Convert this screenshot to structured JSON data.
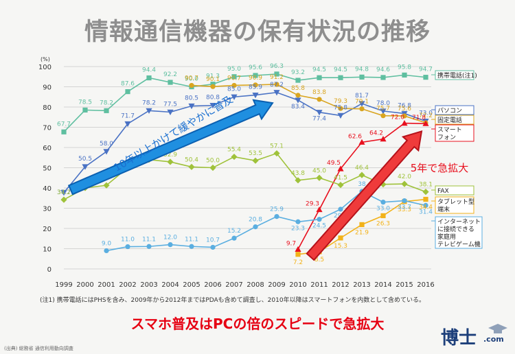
{
  "title": "情報通信機器の保有状況の推移",
  "note": "(注1) 携帯電話にはPHSを含み、2009年から2012年まではPDAも含めて調査し、2010年以降はスマートフォンを内数として含めている。",
  "headline": "スマホ普及はPCの倍のスピードで急拡大",
  "source": "(出典) 総務省 通信利用動向調査",
  "logo": {
    "text": "博士",
    "suffix": ".com"
  },
  "chart_data": {
    "type": "line",
    "unit_label": "(%)",
    "x": [
      1999,
      2000,
      2001,
      2002,
      2003,
      2004,
      2005,
      2006,
      2007,
      2008,
      2009,
      2010,
      2011,
      2012,
      2013,
      2014,
      2015,
      2016
    ],
    "ylim": [
      0,
      100
    ],
    "yticks": [
      0,
      10,
      20,
      30,
      40,
      50,
      60,
      70,
      80,
      90,
      100
    ],
    "grid": true,
    "series": [
      {
        "name": "携帯電話(注1)",
        "color": "#5fbfa0",
        "marker": "square",
        "values": [
          67.7,
          78.5,
          78.2,
          87.6,
          94.4,
          92.2,
          90.0,
          91.3,
          95.0,
          95.6,
          96.3,
          93.2,
          94.5,
          94.5,
          94.8,
          94.6,
          95.8,
          94.7
        ],
        "labels": [
          "67.7",
          "78.5",
          "78.2",
          "87.6",
          "94.4",
          "92.2",
          "90.0",
          "91.3",
          "95.0",
          "95.6",
          "96.3",
          "93.2",
          "94.5",
          "94.5",
          "94.8",
          "94.6",
          "95.8",
          "94.7"
        ]
      },
      {
        "name": "パソコン",
        "color": "#4a72c4",
        "marker": "triangle-down",
        "values": [
          37.7,
          50.5,
          58.0,
          71.7,
          78.2,
          77.5,
          80.5,
          80.8,
          85.0,
          85.9,
          87.2,
          83.4,
          77.4,
          75.8,
          81.7,
          78.0,
          76.8,
          73.0
        ],
        "labels": [
          "37.7",
          "50.5",
          "58.0",
          "71.7",
          "78.2",
          "77.5",
          "80.5",
          "80.8",
          "85.0",
          "85.9",
          "87.2",
          "83.4",
          "77.4",
          "75.8",
          "81.7",
          "78.0",
          "76.8",
          "73.0"
        ]
      },
      {
        "name": "固定電話",
        "color": "#d9a520",
        "marker": "circle",
        "values": [
          null,
          null,
          null,
          null,
          null,
          null,
          90.7,
          90.1,
          90.7,
          90.9,
          91.2,
          85.8,
          83.8,
          79.3,
          79.1,
          75.7,
          75.6,
          72.2
        ],
        "labels": [
          null,
          null,
          null,
          null,
          null,
          null,
          "90.7",
          "90.1",
          "90.7",
          "90.9",
          "91.2",
          "85.8",
          "83.8",
          "79.3",
          "79.1",
          "75.7",
          "75.6",
          "72.2"
        ]
      },
      {
        "name": "スマートフォン",
        "color": "#e8101e",
        "marker": "triangle-up",
        "values": [
          null,
          null,
          null,
          null,
          null,
          null,
          null,
          null,
          null,
          null,
          null,
          9.7,
          29.3,
          49.5,
          62.6,
          64.2,
          72.0,
          71.8
        ],
        "labels": [
          null,
          null,
          null,
          null,
          null,
          null,
          null,
          null,
          null,
          null,
          null,
          "9.7",
          "29.3",
          "49.5",
          "62.6",
          "64.2",
          "72.0",
          "71.8"
        ]
      },
      {
        "name": "FAX",
        "color": "#9fc23a",
        "marker": "diamond",
        "values": [
          34.2,
          40.0,
          41.3,
          50.0,
          54.0,
          52.9,
          50.4,
          50.0,
          55.4,
          53.5,
          57.1,
          43.8,
          45.0,
          41.5,
          46.4,
          41.8,
          42.0,
          38.1
        ],
        "labels": [
          "34.2",
          "",
          "",
          "",
          "",
          "52.9",
          "50.4",
          "50.0",
          "55.4",
          "53.5",
          "57.1",
          "43.8",
          "45.0",
          "41.5",
          "46.4",
          "",
          "42.0",
          "38.1"
        ]
      },
      {
        "name": "タブレット型端末",
        "color": "#f2b21a",
        "marker": "square",
        "values": [
          null,
          null,
          null,
          null,
          null,
          null,
          null,
          null,
          null,
          null,
          null,
          7.2,
          8.5,
          15.3,
          21.9,
          26.3,
          33.3,
          34.4
        ],
        "labels": [
          null,
          null,
          null,
          null,
          null,
          null,
          null,
          null,
          null,
          null,
          null,
          "7.2",
          "8.5",
          "15.3",
          "21.9",
          "26.3",
          "33.3",
          "34.4"
        ]
      },
      {
        "name": "インターネットに接続できる家庭用テレビゲーム機",
        "color": "#5aaee0",
        "marker": "circle",
        "values": [
          null,
          null,
          9.0,
          11.0,
          11.1,
          12.0,
          11.1,
          10.7,
          15.2,
          20.8,
          25.9,
          23.3,
          24.5,
          29.5,
          38.3,
          33.0,
          33.7,
          31.4
        ],
        "labels": [
          null,
          null,
          "9.0",
          "11.0",
          "11.1",
          "12.0",
          "11.1",
          "10.7",
          "15.2",
          "20.8",
          "25.9",
          "23.3",
          "24.5",
          "29.5",
          "38",
          "33.0",
          "33.7",
          "31.4"
        ]
      }
    ],
    "legend": [
      {
        "text": "携帯電話(注1)",
        "color": "#5fbfa0"
      },
      {
        "text": "パソコン",
        "color": "#4a72c4"
      },
      {
        "text": "固定電話",
        "color": "#d9a520"
      },
      {
        "text": "スマート フォン",
        "color": "#e8101e"
      },
      {
        "text": "FAX",
        "color": "#9fc23a"
      },
      {
        "text": "タブレット型 端末",
        "color": "#f2b21a"
      },
      {
        "text": "インターネット に接続できる 家庭用 テレビゲーム機",
        "color": "#5aaee0"
      }
    ],
    "annotations": [
      {
        "text": "10年以上かけて緩やかに普及",
        "color": "#1a6fd0"
      },
      {
        "text": "5年で急拡大",
        "color": "#e8101e"
      }
    ]
  }
}
